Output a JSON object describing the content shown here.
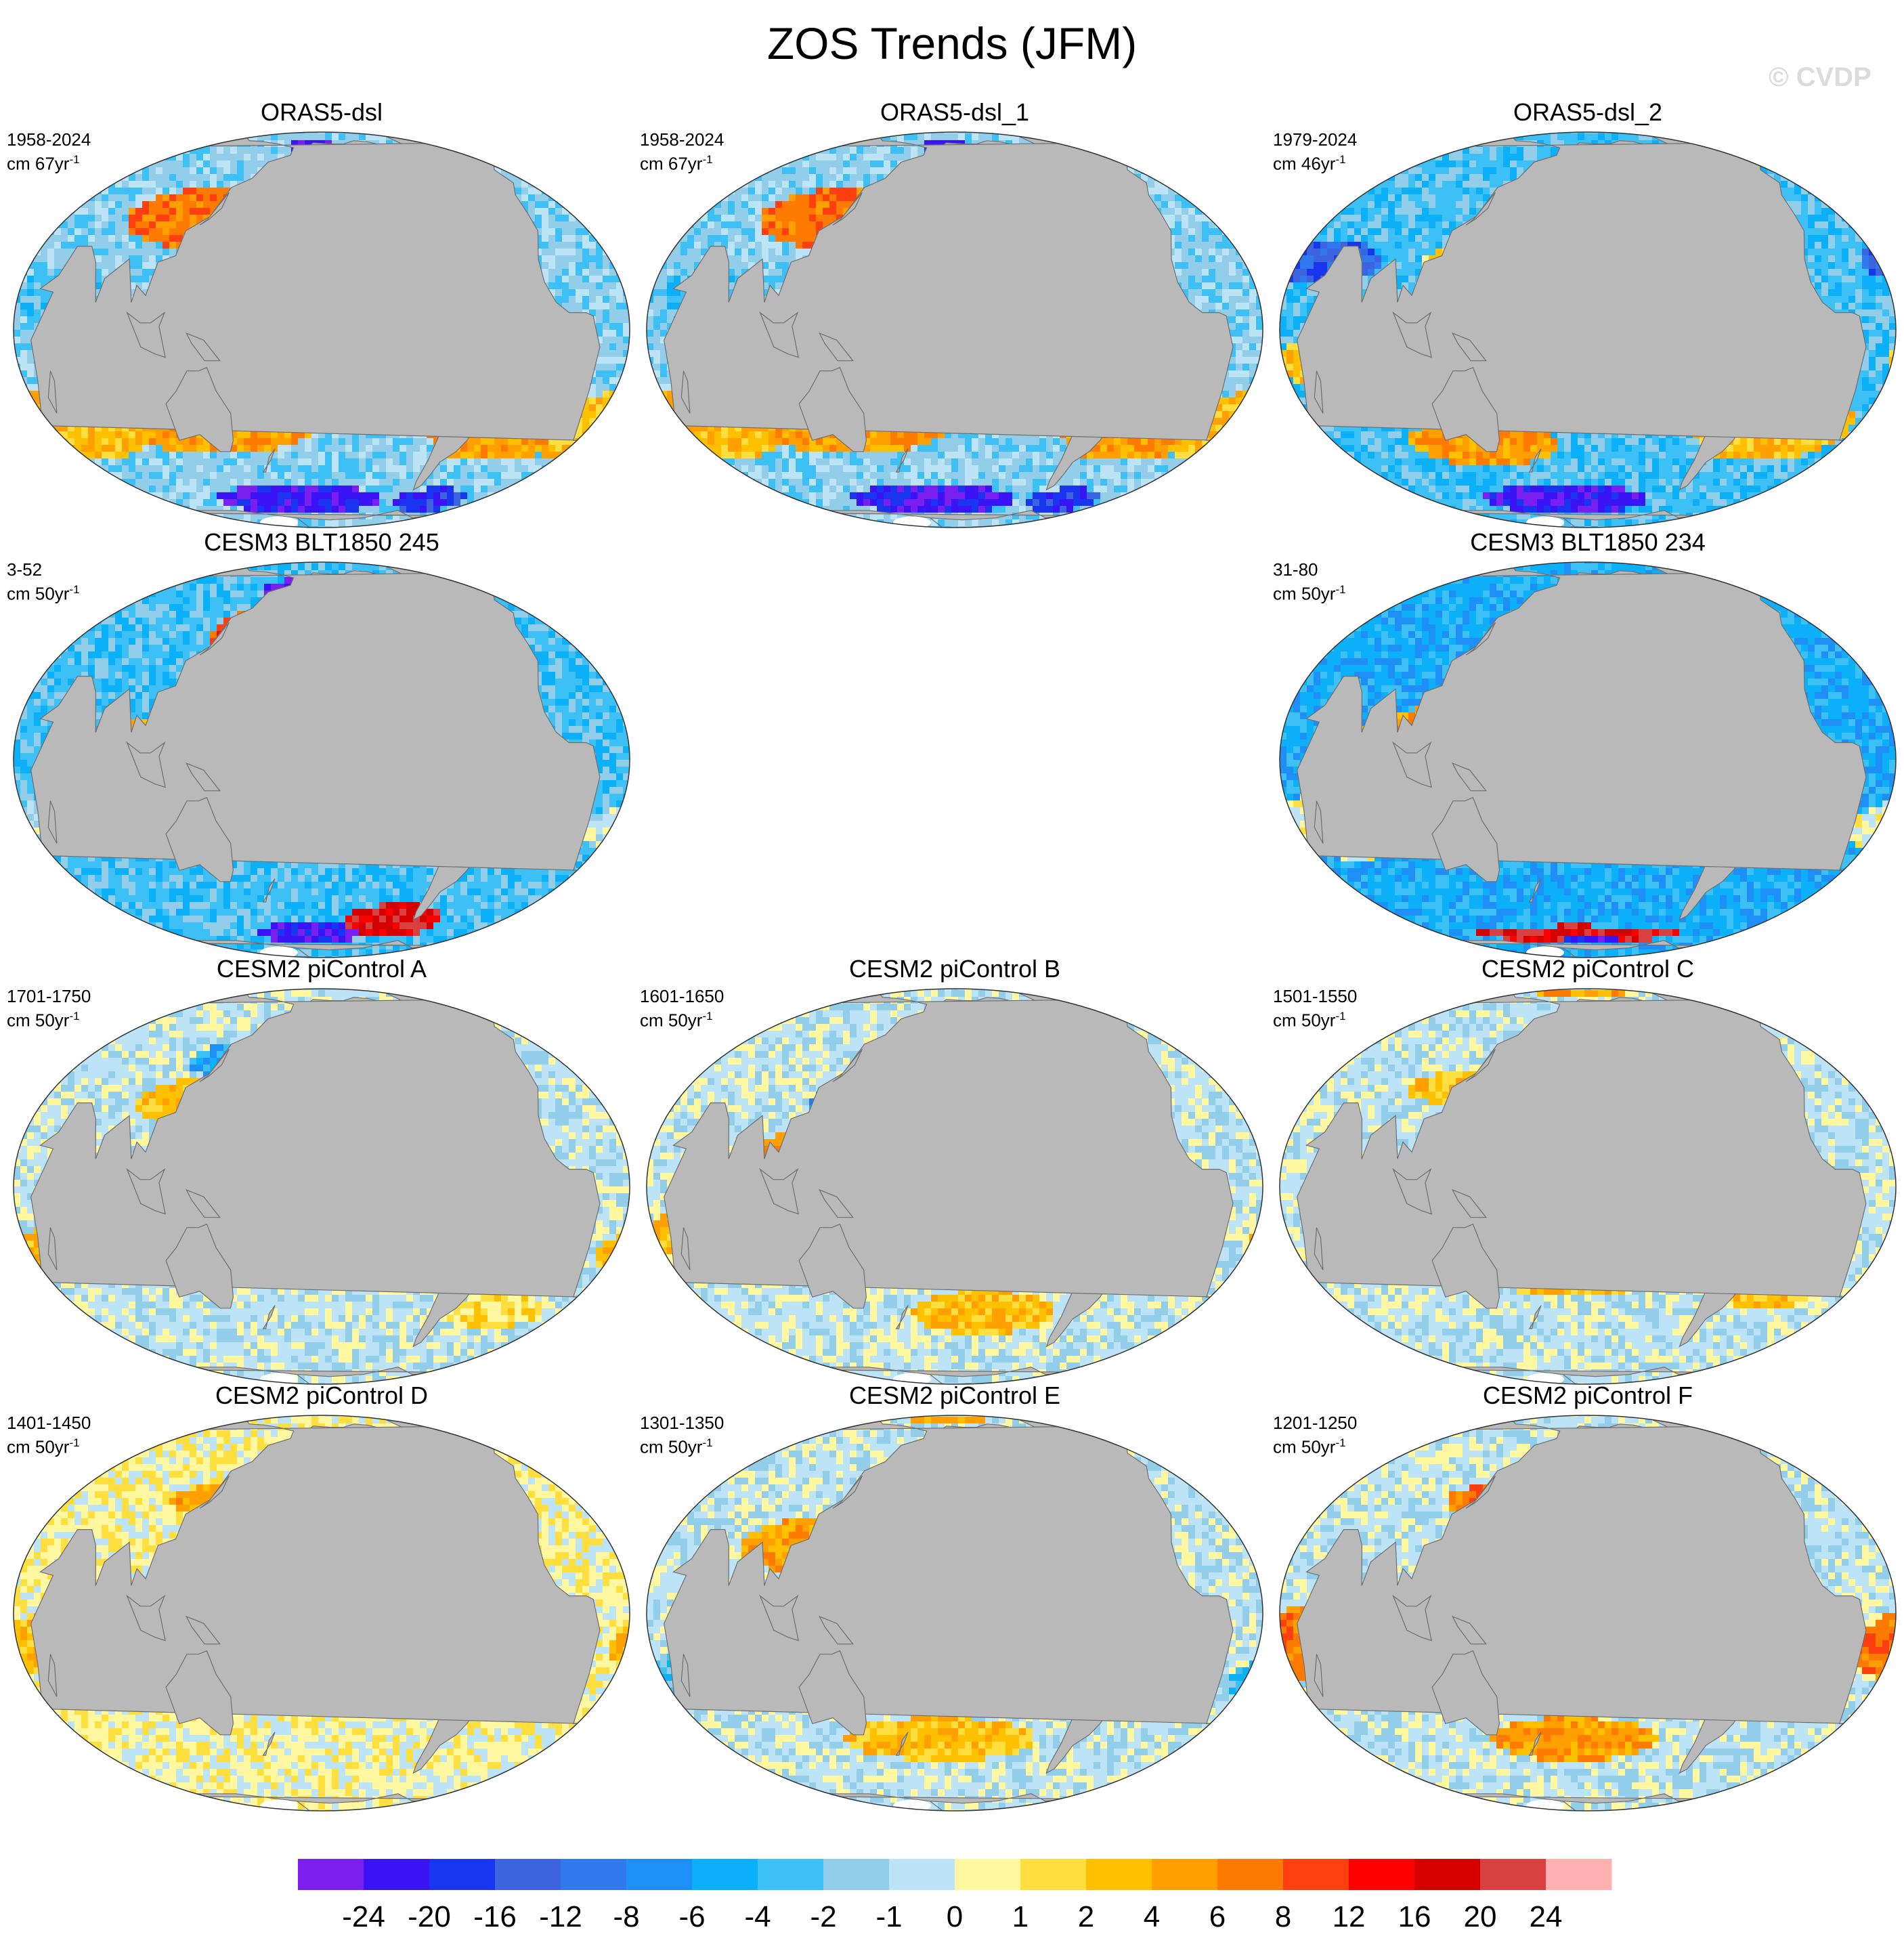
{
  "title": "ZOS Trends (JFM)",
  "credit": "© CVDP",
  "colors": {
    "land": "#b9b9b9",
    "ice": "#ffffff",
    "coastline": "#6f6f6f"
  },
  "panels": [
    {
      "title": "ORAS5-dsl",
      "period": "1958-2024",
      "units_base": "cm 67yr",
      "units_exp": "-1",
      "pattern": 0
    },
    {
      "title": "ORAS5-dsl_1",
      "period": "1958-2024",
      "units_base": "cm 67yr",
      "units_exp": "-1",
      "pattern": 0
    },
    {
      "title": "ORAS5-dsl_2",
      "period": "1979-2024",
      "units_base": "cm 46yr",
      "units_exp": "-1",
      "pattern": 1
    },
    {
      "title": "CESM3 BLT1850 245",
      "period": "3-52",
      "units_base": "cm 50yr",
      "units_exp": "-1",
      "pattern": 2
    },
    {
      "title": "CESM3 BLT1850 234",
      "period": "31-80",
      "units_base": "cm 50yr",
      "units_exp": "-1",
      "pattern": 3
    },
    {
      "title": "CESM2 piControl A",
      "period": "1701-1750",
      "units_base": "cm 50yr",
      "units_exp": "-1",
      "pattern": 4
    },
    {
      "title": "CESM2 piControl B",
      "period": "1601-1650",
      "units_base": "cm 50yr",
      "units_exp": "-1",
      "pattern": 5
    },
    {
      "title": "CESM2 piControl C",
      "period": "1501-1550",
      "units_base": "cm 50yr",
      "units_exp": "-1",
      "pattern": 6
    },
    {
      "title": "CESM2 piControl D",
      "period": "1401-1450",
      "units_base": "cm 50yr",
      "units_exp": "-1",
      "pattern": 7
    },
    {
      "title": "CESM2 piControl E",
      "period": "1301-1350",
      "units_base": "cm 50yr",
      "units_exp": "-1",
      "pattern": 8
    },
    {
      "title": "CESM2 piControl F",
      "period": "1201-1250",
      "units_base": "cm 50yr",
      "units_exp": "-1",
      "pattern": 9
    }
  ],
  "colorbar": {
    "colors": [
      "#7a1ff0",
      "#3a14f5",
      "#1a35f0",
      "#3d64e0",
      "#2f78ee",
      "#1f8ff8",
      "#0cb0f8",
      "#3cc0f5",
      "#92cdea",
      "#bde3f6",
      "#fff8a0",
      "#ffdf40",
      "#ffc000",
      "#ffa000",
      "#ff7a00",
      "#ff3f10",
      "#ff0000",
      "#d50000",
      "#d94040",
      "#ffb0b0"
    ],
    "labels": [
      "-24",
      "-20",
      "-16",
      "-12",
      "-8",
      "-6",
      "-4",
      "-2",
      "-1",
      "0",
      "1",
      "2",
      "4",
      "6",
      "8",
      "12",
      "16",
      "20",
      "24"
    ]
  }
}
